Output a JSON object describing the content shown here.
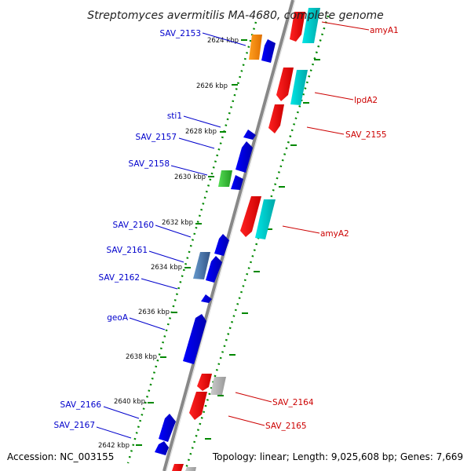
{
  "title": "Streptomyces avermitilis MA-4680, complete genome",
  "footer": {
    "accession": "Accession: NC_003155",
    "summary": "Topology: linear; Length: 9,025,608 bp; Genes: 7,669"
  },
  "scale_ticks": [
    {
      "label": "2624 kbp",
      "pos": 2624
    },
    {
      "label": "2626 kbp",
      "pos": 2626
    },
    {
      "label": "2628 kbp",
      "pos": 2628
    },
    {
      "label": "2630 kbp",
      "pos": 2630
    },
    {
      "label": "2632 kbp",
      "pos": 2632
    },
    {
      "label": "2634 kbp",
      "pos": 2634
    },
    {
      "label": "2636 kbp",
      "pos": 2636
    },
    {
      "label": "2638 kbp",
      "pos": 2638
    },
    {
      "label": "2640 kbp",
      "pos": 2640
    },
    {
      "label": "2642 kbp",
      "pos": 2642
    }
  ],
  "left_labels": [
    "SAV_2153",
    "sti1",
    "SAV_2157",
    "SAV_2158",
    "SAV_2160",
    "SAV_2161",
    "SAV_2162",
    "geoA",
    "SAV_2166",
    "SAV_2167"
  ],
  "right_labels": [
    "amyA1",
    "lpdA2",
    "SAV_2155",
    "amyA2",
    "SAV_2164",
    "SAV_2165"
  ],
  "colors": {
    "forward_label": "#0000cc",
    "reverse_label": "#cc0000",
    "forward_gene": "#0000ee",
    "reverse_gene": "#ee0000",
    "cyan_gene": "#00cccc",
    "orange_gene": "#ff8800",
    "green_gene": "#33bb33",
    "steel_gene": "#4477aa",
    "grey_gene": "#aaaaaa",
    "backbone": "#888888",
    "dots": "#008800"
  }
}
